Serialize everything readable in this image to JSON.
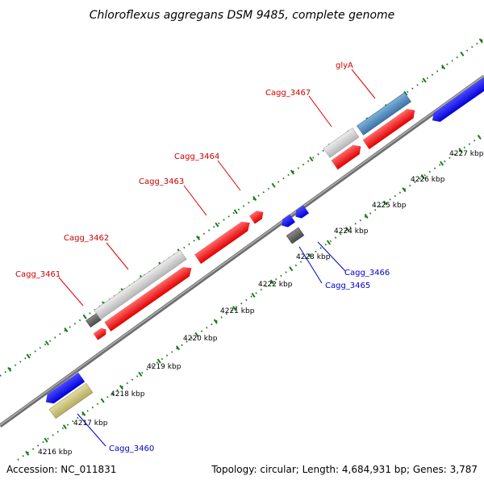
{
  "map": {
    "title": "Chloroflexus aggregans DSM 9485, complete genome",
    "accession": "Accession: NC_011831",
    "summary": "Topology: circular; Length: 4,684,931 bp; Genes: 3,787",
    "colors": {
      "forward_cds": "#ff0000",
      "reverse_cds": "#0000ff",
      "label_forward": "#cc0000",
      "label_reverse": "#0000cc",
      "other_gene": "#c8c8c8",
      "dark_gene": "#555555",
      "rna": "#4682b4",
      "misc": "#bdb76b",
      "backbone": "#808080",
      "ticks": "#1a7a1a"
    },
    "kbp_labels": [
      "4216 kbp",
      "4217 kbp",
      "4218 kbp",
      "4219 kbp",
      "4220 kbp",
      "4221 kbp",
      "4222 kbp",
      "4223 kbp",
      "4224 kbp",
      "4225 kbp",
      "4226 kbp",
      "4227 kbp"
    ],
    "gene_labels": {
      "cagg_3461": "Cagg_3461",
      "cagg_3462": "Cagg_3462",
      "cagg_3463": "Cagg_3463",
      "cagg_3464": "Cagg_3464",
      "cagg_3467": "Cagg_3467",
      "glya": "glyA",
      "cagg_3466": "Cagg_3466",
      "cagg_3465": "Cagg_3465",
      "cagg_3460": "Cagg_3460"
    }
  }
}
